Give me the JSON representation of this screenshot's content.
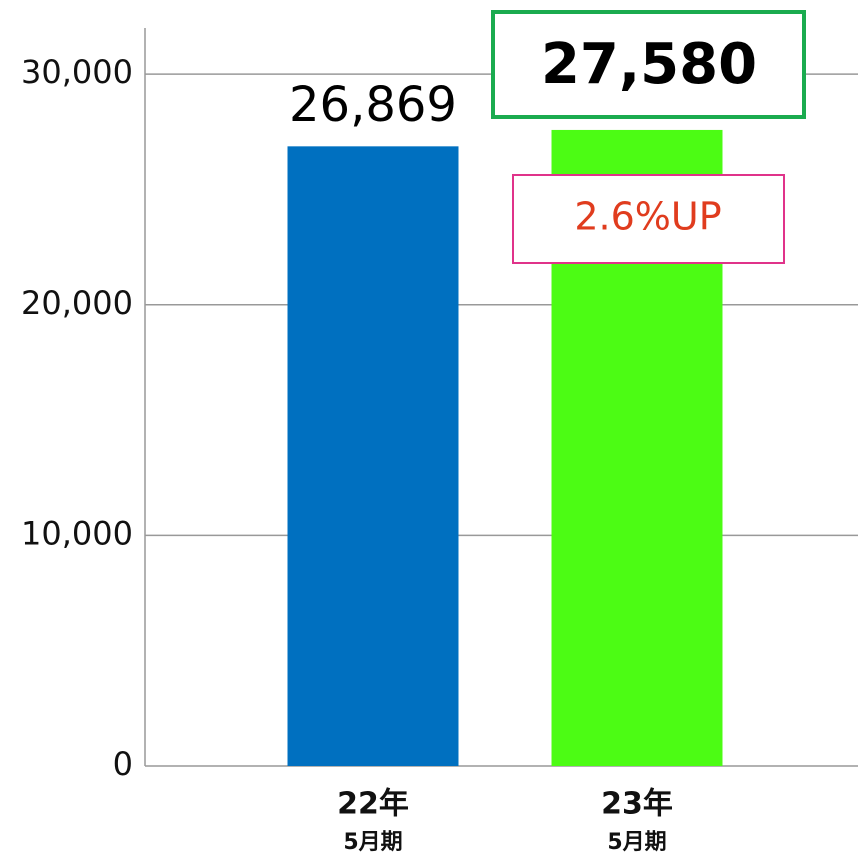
{
  "chart_data": {
    "type": "bar",
    "categories": [
      [
        "22年",
        "5月期"
      ],
      [
        "23年",
        "5月期"
      ]
    ],
    "values": [
      26869,
      27580
    ],
    "value_labels": [
      "26,869",
      "27,580"
    ],
    "colors": [
      "#0070c0",
      "#4cfc14"
    ],
    "annotation": "2.6%UP",
    "ylim": [
      0,
      32000
    ],
    "yticks": [
      0,
      {
        "value": 10000,
        "label": "10,000"
      },
      {
        "value": 20000,
        "label": "20,000"
      },
      {
        "value": 30000,
        "label": "30,000"
      }
    ],
    "grid": true
  }
}
